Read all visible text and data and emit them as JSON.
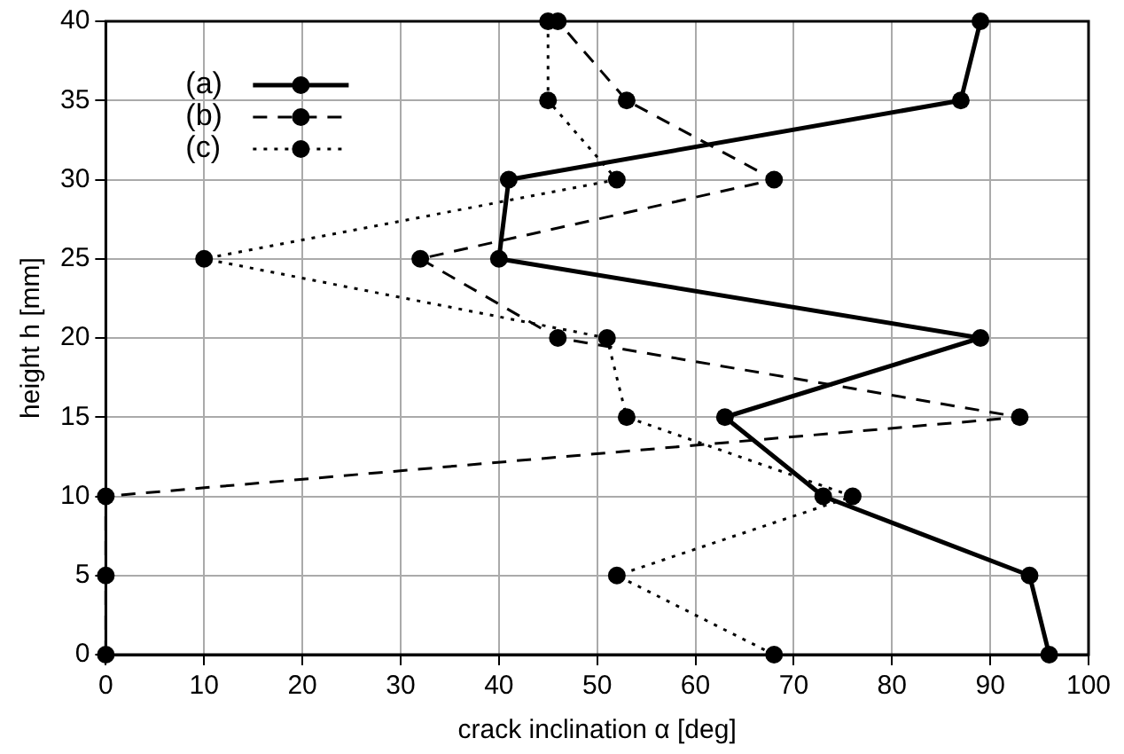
{
  "chart_data": {
    "type": "line",
    "xlabel": "crack inclination α [deg]",
    "ylabel": "height h [mm]",
    "xlim": [
      0,
      100
    ],
    "xticks": [
      0,
      10,
      20,
      30,
      40,
      50,
      60,
      70,
      80,
      90,
      100
    ],
    "ylim": [
      0,
      40
    ],
    "yticks": [
      0,
      5,
      10,
      15,
      20,
      25,
      30,
      35,
      40
    ],
    "grid": true,
    "legend": "top left",
    "marker": "circle",
    "series": [
      {
        "name": "(a)",
        "color": "#000000",
        "line_style": "solid",
        "x": [
          96,
          94,
          73,
          63,
          89,
          40,
          41,
          87,
          89
        ],
        "values": [
          0,
          5,
          10,
          15,
          20,
          25,
          30,
          35,
          40
        ]
      },
      {
        "name": "(b)",
        "color": "#000000",
        "line_style": "dashed",
        "x": [
          0,
          0,
          0,
          93,
          46,
          32,
          68,
          53,
          46
        ],
        "values": [
          0,
          5,
          10,
          15,
          20,
          25,
          30,
          35,
          40
        ]
      },
      {
        "name": "(c)",
        "color": "#000000",
        "line_style": "dotted",
        "x": [
          68,
          52,
          76,
          53,
          51,
          10,
          52,
          45,
          45
        ],
        "values": [
          0,
          5,
          10,
          15,
          20,
          25,
          30,
          35,
          40
        ]
      }
    ]
  }
}
